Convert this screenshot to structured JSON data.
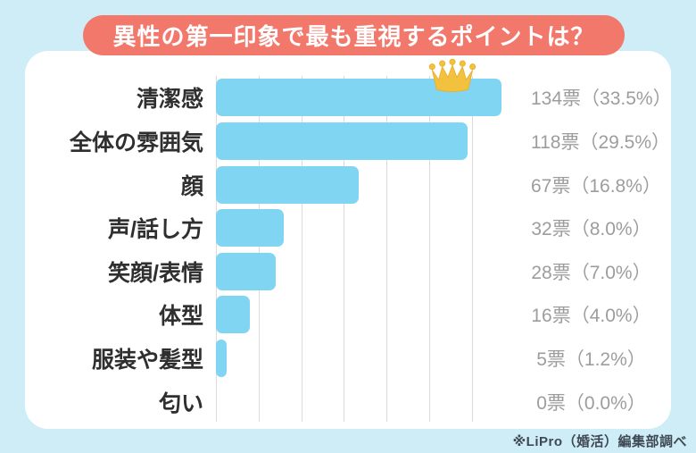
{
  "title": "異性の第一印象で最も重視するポイントは？",
  "footer": "※LiPro（婚活）編集部調べ",
  "icons": {
    "winner": "crown-icon"
  },
  "colors": {
    "background": "#CFEDF6",
    "card": "#FFFFFF",
    "title_bg": "#F2786C",
    "title_text": "#FFFFFF",
    "bar": "#80D5F2",
    "label_text": "#2F2F2F",
    "value_text": "#9D9D9D",
    "gridline": "#DBDBDB",
    "crown": "#F2C13E",
    "crown_stroke": "#E8B12C",
    "footer_text": "#3E4953"
  },
  "chart_data": {
    "type": "bar",
    "orientation": "horizontal",
    "title": "異性の第一印象で最も重視するポイントは？",
    "categories": [
      "清潔感",
      "全体の雰囲気",
      "顔",
      "声/話し方",
      "笑顔/表情",
      "体型",
      "服装や髪型",
      "匂い"
    ],
    "values": [
      134,
      118,
      67,
      32,
      28,
      16,
      5,
      0
    ],
    "percentages": [
      33.5,
      29.5,
      16.8,
      8.0,
      7.0,
      4.0,
      1.2,
      0.0
    ],
    "value_labels": [
      "134票（33.5%）",
      "118票（29.5%）",
      "67票（16.8%）",
      "32票（8.0%）",
      "28票（7.0%）",
      "16票（4.0%）",
      "5票（1.2%）",
      "0票（0.0%）"
    ],
    "unit": "票",
    "xlim": [
      0,
      140
    ],
    "gridline_interval": 20,
    "grid": true,
    "legend": false,
    "annotation": "crown on top-ranked bar (清潔感)"
  }
}
